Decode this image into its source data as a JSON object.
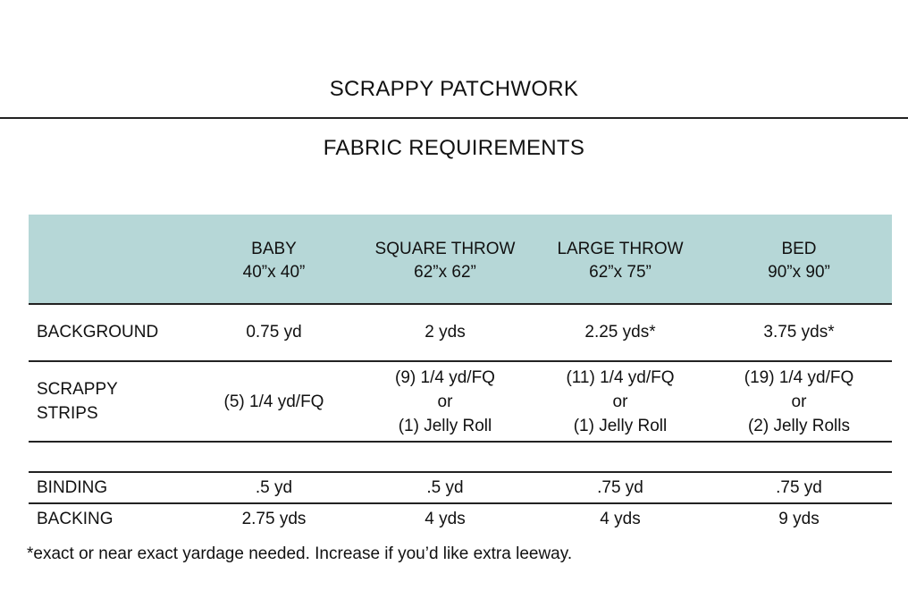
{
  "page": {
    "title": "SCRAPPY PATCHWORK",
    "subtitle": "FABRIC REQUIREMENTS",
    "footnote": "*exact or near exact yardage needed. Increase if you’d like extra leeway."
  },
  "colors": {
    "header_background": "#b6d7d7",
    "rule": "#222222",
    "text": "#111111"
  },
  "table": {
    "sizes": [
      {
        "name": "BABY",
        "dimensions": "40”x 40”"
      },
      {
        "name": "SQUARE THROW",
        "dimensions": "62”x 62”"
      },
      {
        "name": "LARGE THROW",
        "dimensions": "62”x 75”"
      },
      {
        "name": "BED",
        "dimensions": "90”x 90”"
      }
    ],
    "rows": {
      "background": {
        "label": "BACKGROUND",
        "values": [
          "0.75 yd",
          "2 yds",
          "2.25 yds*",
          "3.75 yds*"
        ]
      },
      "strips": {
        "label_line1": "SCRAPPY",
        "label_line2": "STRIPS",
        "values": [
          {
            "line1": "(5) 1/4 yd/FQ"
          },
          {
            "line1": "(9) 1/4 yd/FQ",
            "line2": "or",
            "line3": "(1) Jelly Roll"
          },
          {
            "line1": "(11) 1/4 yd/FQ",
            "line2": "or",
            "line3": "(1) Jelly Roll"
          },
          {
            "line1": "(19) 1/4 yd/FQ",
            "line2": "or",
            "line3": "(2) Jelly Rolls"
          }
        ]
      },
      "binding": {
        "label": "BINDING",
        "values": [
          ".5 yd",
          ".5 yd",
          ".75 yd",
          ".75 yd"
        ]
      },
      "backing": {
        "label": "BACKING",
        "values": [
          "2.75 yds",
          "4 yds",
          "4 yds",
          "9 yds"
        ]
      }
    }
  }
}
